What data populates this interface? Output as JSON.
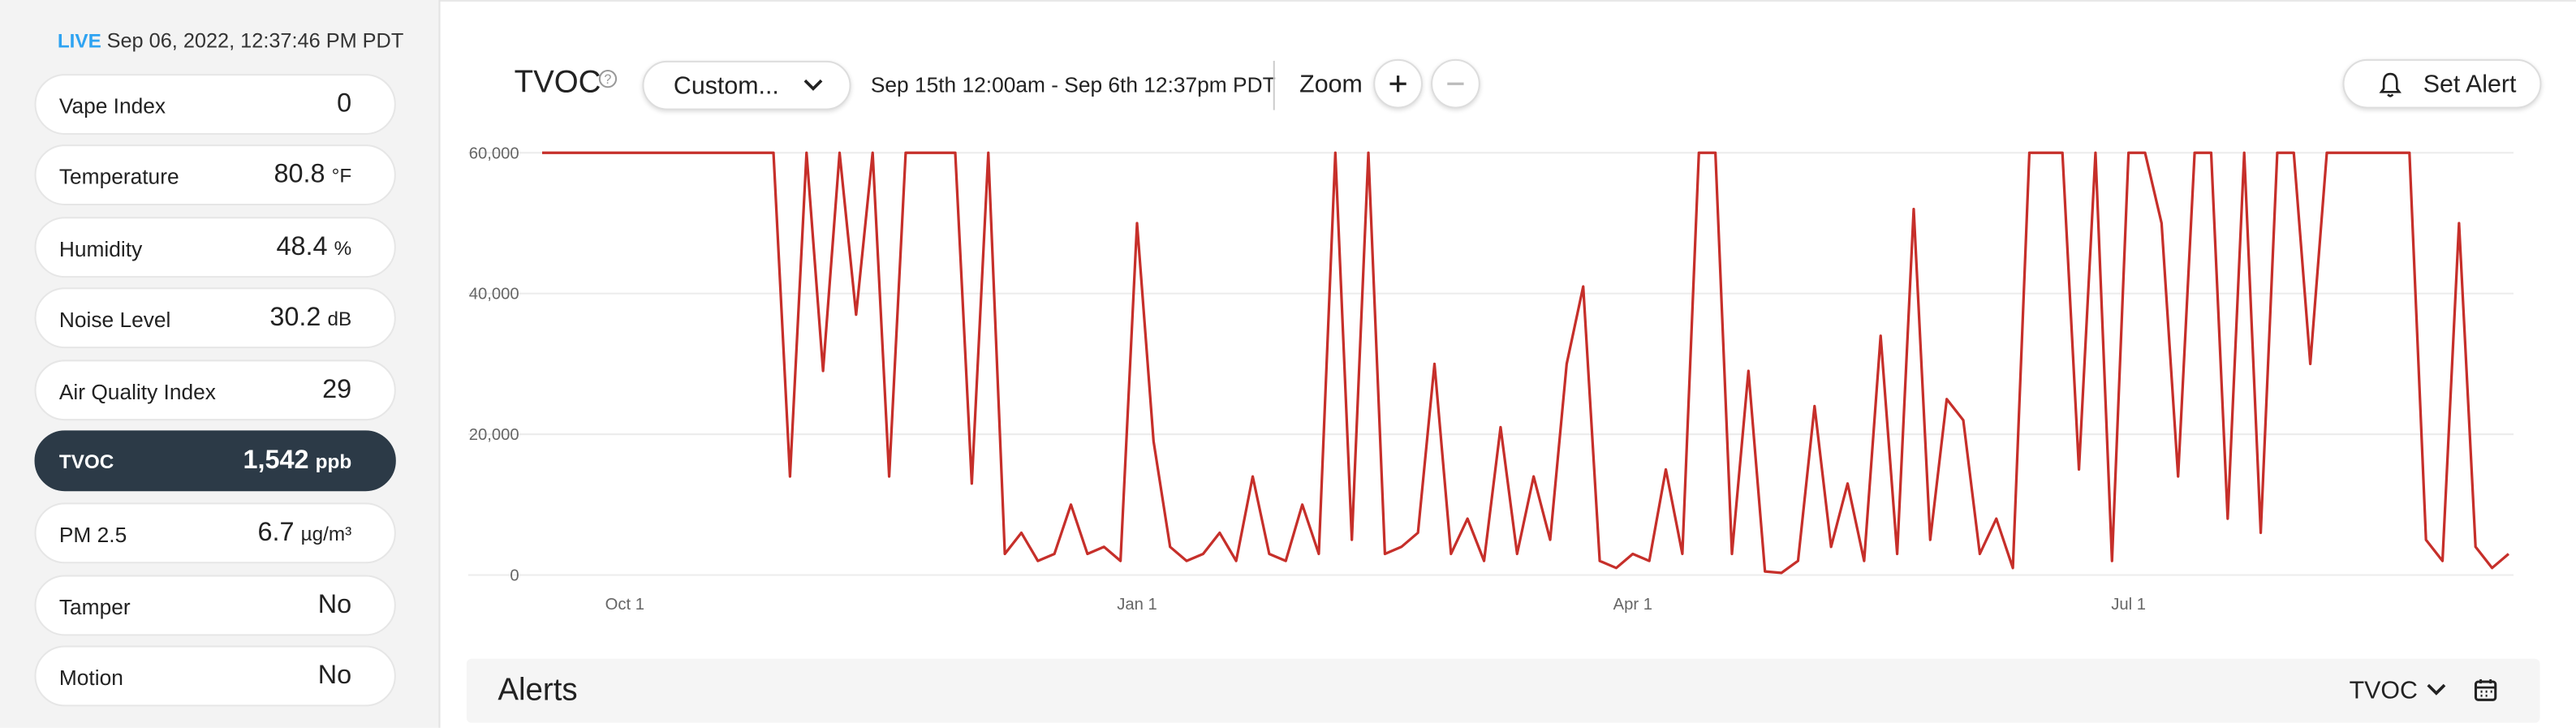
{
  "sidebar": {
    "live": "LIVE",
    "timestamp": "Sep 06, 2022, 12:37:46 PM PDT",
    "metrics": [
      {
        "label": "Vape Index",
        "value": "0"
      },
      {
        "label": "Temperature",
        "value": "80.8",
        "unit": "°F"
      },
      {
        "label": "Humidity",
        "value": "48.4",
        "unit": "%"
      },
      {
        "label": "Noise Level",
        "value": "30.2",
        "unit": "dB"
      },
      {
        "label": "Air Quality Index",
        "value": "29"
      },
      {
        "label": "TVOC",
        "value": "1,542",
        "unit": "ppb"
      },
      {
        "label": "PM 2.5",
        "value": "6.7",
        "unit": "µg/m³"
      },
      {
        "label": "Tamper",
        "value": "No"
      },
      {
        "label": "Motion",
        "value": "No"
      }
    ]
  },
  "header": {
    "title": "TVOC",
    "range_select": "Custom...",
    "range": "Sep 15th 12:00am - Sep 6th 12:37pm PDT",
    "zoom": "Zoom",
    "set_alert": "Set Alert"
  },
  "chart_data": {
    "type": "line",
    "color": "#c62f2a",
    "grid": true,
    "categories": [
      null,
      null,
      null,
      null,
      null,
      "Oct 1",
      null,
      null,
      null,
      null,
      null,
      null,
      null,
      null,
      null,
      null,
      null,
      null,
      null,
      null,
      null,
      null,
      null,
      null,
      null,
      null,
      null,
      null,
      null,
      null,
      null,
      null,
      null,
      null,
      null,
      null,
      "Jan 1",
      null,
      null,
      null,
      null,
      null,
      null,
      null,
      null,
      null,
      null,
      null,
      null,
      null,
      null,
      null,
      null,
      null,
      null,
      null,
      null,
      null,
      null,
      null,
      null,
      null,
      null,
      null,
      null,
      null,
      "Apr 1",
      null,
      null,
      null,
      null,
      null,
      null,
      null,
      null,
      null,
      null,
      null,
      null,
      null,
      null,
      null,
      null,
      null,
      null,
      null,
      null,
      null,
      null,
      null,
      null,
      null,
      null,
      null,
      null,
      null,
      "Jul 1",
      null,
      null,
      null,
      null,
      null,
      null,
      null,
      null,
      null,
      null,
      null,
      null,
      null,
      null,
      null,
      null,
      null,
      null,
      null,
      null,
      null,
      null,
      null
    ],
    "values": [
      60000,
      60000,
      60000,
      60000,
      60000,
      60000,
      60000,
      60000,
      60000,
      60000,
      60000,
      60000,
      60000,
      60000,
      60000,
      14000,
      60000,
      29000,
      60000,
      37000,
      60000,
      14000,
      60000,
      60000,
      60000,
      60000,
      13000,
      60000,
      3000,
      6000,
      2000,
      3000,
      10000,
      3000,
      4000,
      2000,
      50000,
      19000,
      4000,
      2000,
      3000,
      6000,
      2000,
      14000,
      3000,
      2000,
      10000,
      3000,
      60000,
      5000,
      60000,
      3000,
      4000,
      6000,
      30000,
      3000,
      8000,
      2000,
      21000,
      3000,
      14000,
      5000,
      30000,
      41000,
      2000,
      1000,
      3000,
      2000,
      15000,
      3000,
      60000,
      60000,
      3000,
      29000,
      500,
      300,
      2000,
      24000,
      4000,
      13000,
      2000,
      34000,
      3000,
      52000,
      5000,
      25000,
      22000,
      3000,
      8000,
      1000,
      60000,
      60000,
      60000,
      15000,
      60000,
      2000,
      60000,
      60000,
      50000,
      14000,
      60000,
      60000,
      8000,
      60000,
      6000,
      60000,
      60000,
      30000,
      60000,
      60000,
      60000,
      60000,
      60000,
      60000,
      5000,
      2000,
      50000,
      4000,
      1000,
      3000
    ],
    "ylim": [
      0,
      60000
    ],
    "yticks": [
      0,
      {
        "value": 20000,
        "label": "20,000"
      },
      {
        "value": 40000,
        "label": "40,000"
      },
      {
        "value": 60000,
        "label": "60,000"
      }
    ]
  },
  "alerts": {
    "title": "Alerts",
    "filter": "TVOC"
  }
}
